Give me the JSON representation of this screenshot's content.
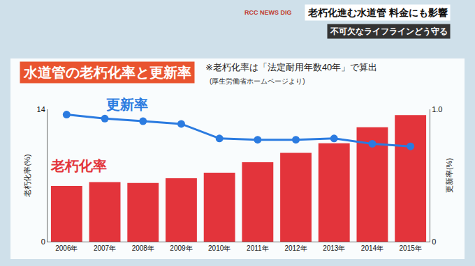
{
  "chart_data": {
    "type": "bar",
    "title": "水道管の老朽化率と更新率",
    "subtitle": "※老朽化率は「法定耐用年数40年」で算出",
    "annotations": [
      "(厚生労働省ホームページより)",
      "RCC NEWS DIG",
      "老朽化進む水道管 料金にも影響",
      "不可欠なライフラインどう守る"
    ],
    "categories": [
      "2006年",
      "2007年",
      "2008年",
      "2009年",
      "2010年",
      "2011年",
      "2012年",
      "2013年",
      "2014年",
      "2015年"
    ],
    "series": [
      {
        "name": "老朽化率",
        "type": "bar",
        "color": "#e3343b",
        "values": [
          5.9,
          6.3,
          6.2,
          6.7,
          7.3,
          8.4,
          9.4,
          10.4,
          12.1,
          13.4
        ]
      },
      {
        "name": "更新率",
        "type": "line",
        "color": "#2b7be0",
        "marker": "circle",
        "axis": "y2",
        "values": [
          0.96,
          0.93,
          0.91,
          0.89,
          0.78,
          0.77,
          0.77,
          0.78,
          0.74,
          0.72
        ]
      }
    ],
    "ylabel": "老朽化率(%)",
    "y2label": "更新率(%)",
    "ylim": [
      0,
      14
    ],
    "yticks": [
      0,
      14
    ],
    "y2lim": [
      0,
      1
    ],
    "y2ticks": [
      0,
      {
        "value": 1,
        "label": "1.0"
      }
    ],
    "grid": false
  }
}
